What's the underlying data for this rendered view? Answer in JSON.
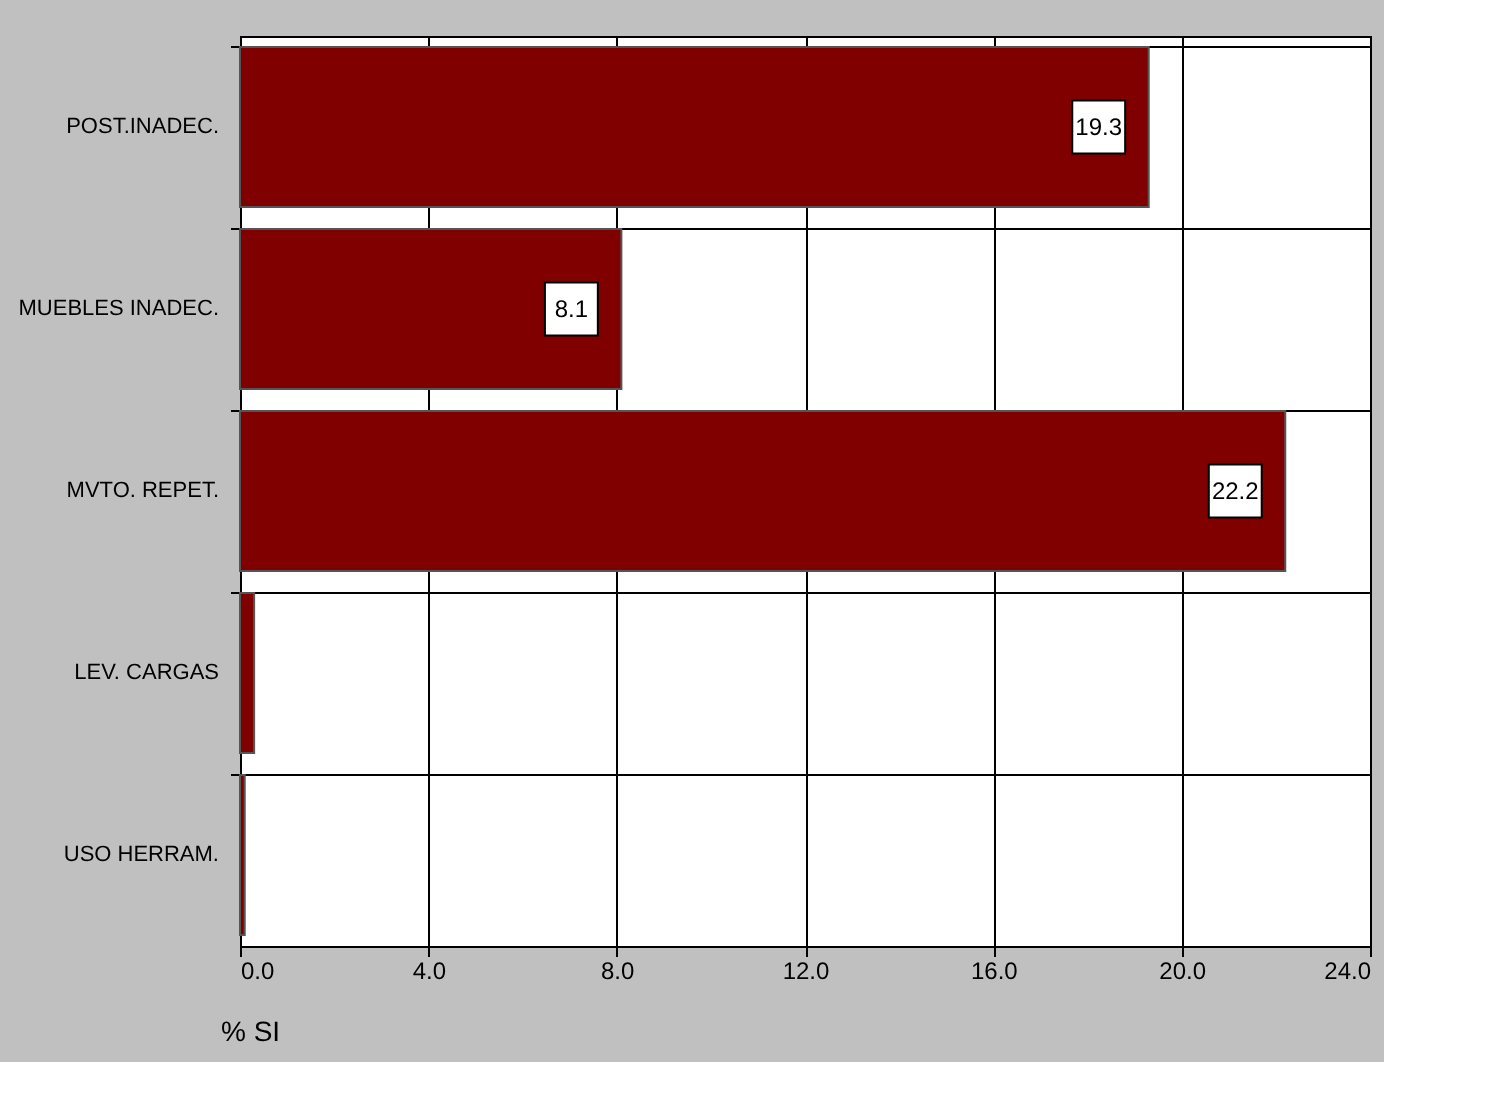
{
  "chart_data": {
    "type": "bar",
    "orientation": "horizontal",
    "categories": [
      "POST.INADEC.",
      "MUEBLES INADEC.",
      "MVTO. REPET.",
      "LEV. CARGAS",
      "USO HERRAM."
    ],
    "values": [
      19.3,
      8.1,
      22.2,
      0.3,
      0.1
    ],
    "color": "#800000",
    "value_labels": [
      "19.3",
      "8.1",
      "22.2",
      null,
      null
    ],
    "xlim": [
      0,
      24
    ],
    "xticks": [
      {
        "value": 0,
        "label": "0.0"
      },
      {
        "value": 4,
        "label": "4.0"
      },
      {
        "value": 8,
        "label": "8.0"
      },
      {
        "value": 12,
        "label": "12.0"
      },
      {
        "value": 16,
        "label": "16.0"
      },
      {
        "value": 20,
        "label": "20.0"
      },
      {
        "value": 24,
        "label": "24.0"
      }
    ],
    "xlabel": "% SI",
    "grid": true
  }
}
